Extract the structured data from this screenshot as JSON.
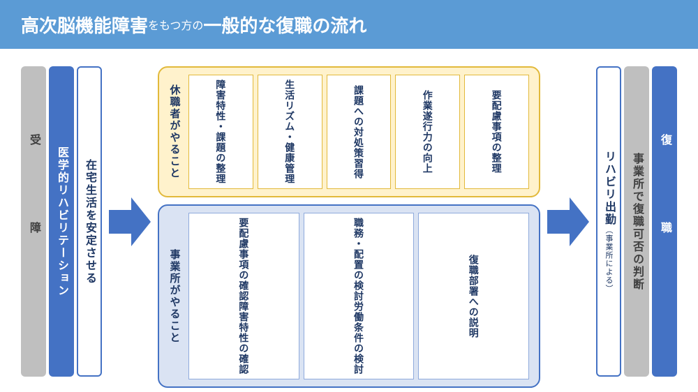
{
  "colors": {
    "header_bg": "#5b9bd5",
    "blue": "#4472c4",
    "gray": "#bfbfbf",
    "yellow_bg": "#fff2cc",
    "yellow_border": "#e2b93b",
    "lightblue_bg": "#dae3f3",
    "lightblue_border": "#8faadc",
    "text_dark": "#1f3864"
  },
  "header": {
    "part1_big": "高次脳機能障害",
    "part2_small": "をもつ方の",
    "part3_big": "一般的な復職の流れ"
  },
  "left_bars": [
    {
      "style": "gray spread",
      "text": "受障"
    },
    {
      "style": "blue",
      "text": "医学的リハビリテーション"
    },
    {
      "style": "white",
      "text": "在宅生活を安定させる"
    }
  ],
  "center": {
    "top": {
      "label": "休職者がやること",
      "items": [
        "障害特性・課題の整理",
        "生活リズム・健康管理",
        "課題への対処策習得",
        "作業遂行力の向上",
        "要配慮事項の整理"
      ]
    },
    "bottom": {
      "label": "事業所がやること",
      "items": [
        {
          "lines": [
            "要配慮事項の確認",
            "障害特性の確認"
          ],
          "flex": 2
        },
        {
          "lines": [
            "職務・配置の検討",
            "労働条件の検討"
          ],
          "flex": 2
        },
        {
          "lines": [
            "復職部署への説明"
          ],
          "flex": 2
        }
      ]
    }
  },
  "right_bars": [
    {
      "style": "white",
      "text": "リハビリ出勤",
      "sub": "（事業所による）"
    },
    {
      "style": "gray",
      "text": "事業所で復職可否の判断"
    },
    {
      "style": "blue spread",
      "text": "復職"
    }
  ]
}
